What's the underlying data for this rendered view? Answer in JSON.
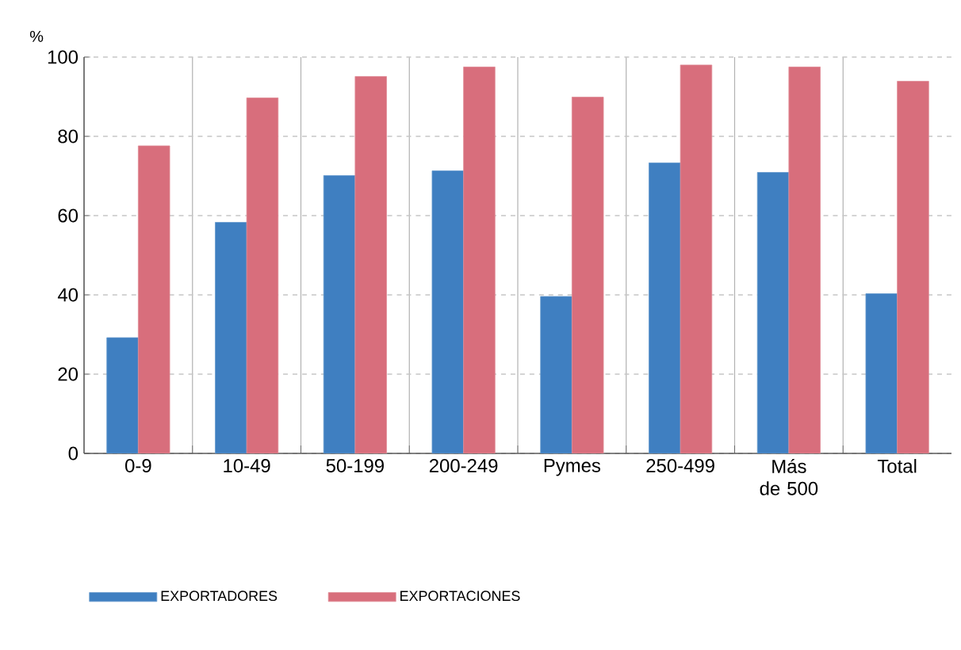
{
  "chart_data": {
    "type": "bar",
    "ylabel": "%",
    "categories": [
      "0-9",
      "10-49",
      "50-199",
      "200-249",
      "Pymes",
      "250-499",
      "Más de 500",
      "Total"
    ],
    "series": [
      {
        "name": "EXPORTADORES",
        "color": "#3f7fc1",
        "values": [
          29.2,
          58.3,
          70.1,
          71.3,
          39.6,
          73.3,
          70.9,
          40.3
        ]
      },
      {
        "name": "EXPORTACIONES",
        "color": "#d86e7c",
        "values": [
          77.6,
          89.7,
          95.1,
          97.5,
          89.9,
          98.0,
          97.5,
          93.9
        ]
      }
    ],
    "ylim": [
      0,
      100
    ],
    "yticks": [
      0,
      20,
      40,
      60,
      80,
      100
    ],
    "grid": true,
    "legend": "bottom"
  }
}
